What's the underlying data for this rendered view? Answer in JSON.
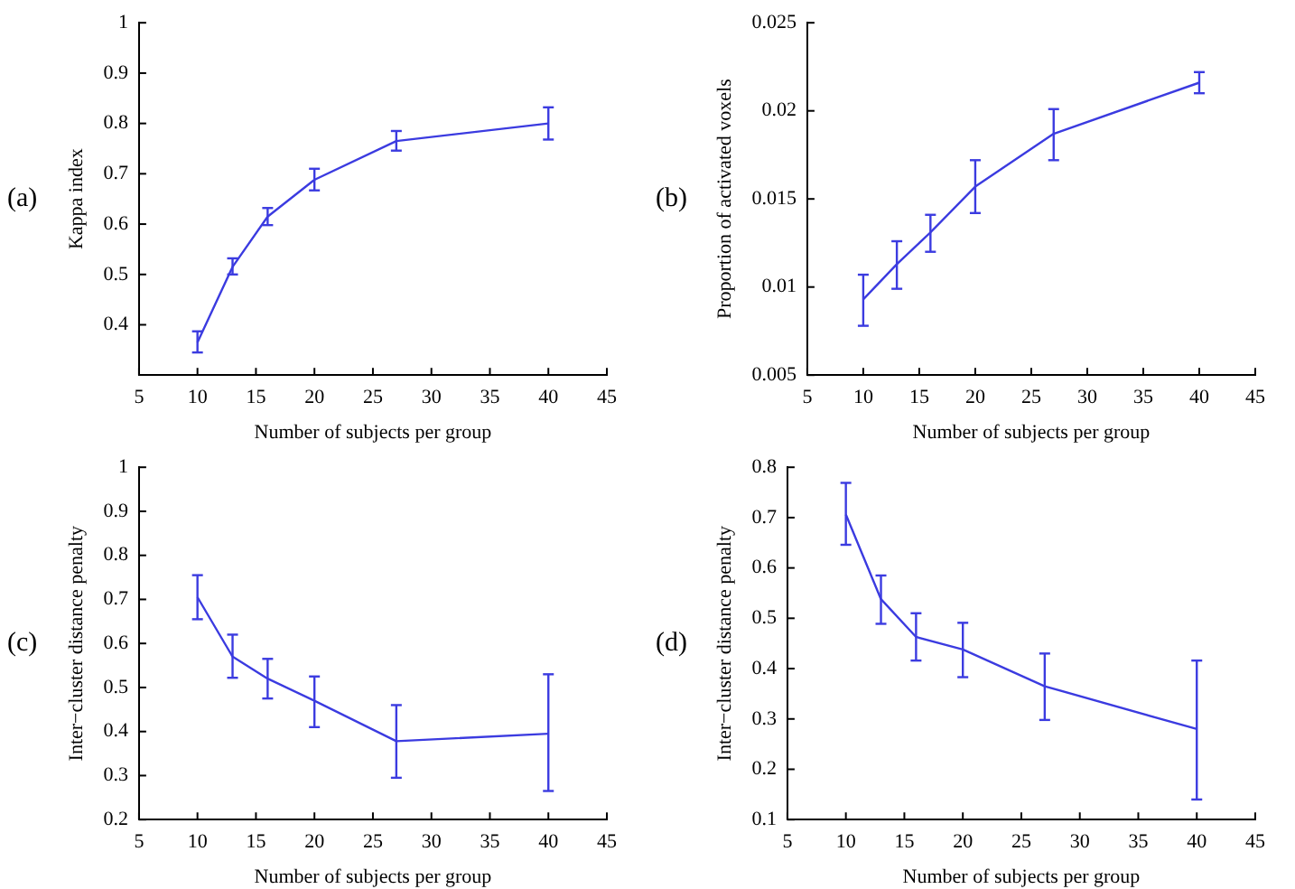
{
  "chart_data": [
    {
      "type": "line",
      "annotations": [
        "(a)"
      ],
      "xlabel": "Number of subjects per group",
      "ylabel": "Kappa index",
      "x": [
        10,
        13,
        16,
        20,
        27,
        40
      ],
      "xlim": [
        5,
        45
      ],
      "xticks": [
        5,
        10,
        15,
        20,
        25,
        30,
        35,
        40,
        45
      ],
      "ylim": [
        0.3,
        1
      ],
      "yticks": [
        0.4,
        0.5,
        0.6,
        0.7,
        0.8,
        0.9,
        1
      ],
      "grid": false,
      "legend": false,
      "marker": "none",
      "line_style": "solid",
      "series": [
        {
          "color": "#3b3be0",
          "values": [
            0.365,
            0.515,
            0.615,
            0.688,
            0.765,
            0.8
          ],
          "errors": [
            [
              0.345,
              0.387
            ],
            [
              0.5,
              0.532
            ],
            [
              0.598,
              0.632
            ],
            [
              0.667,
              0.71
            ],
            [
              0.746,
              0.785
            ],
            [
              0.768,
              0.832
            ]
          ]
        }
      ]
    },
    {
      "type": "line",
      "annotations": [
        "(b)"
      ],
      "xlabel": "Number of subjects per group",
      "ylabel": "Proportion of activated voxels",
      "x": [
        10,
        13,
        16,
        20,
        27,
        40
      ],
      "xlim": [
        5,
        45
      ],
      "xticks": [
        5,
        10,
        15,
        20,
        25,
        30,
        35,
        40,
        45
      ],
      "ylim": [
        0.005,
        0.025
      ],
      "yticks": [
        0.005,
        0.01,
        0.015,
        0.02,
        0.025
      ],
      "grid": false,
      "legend": false,
      "marker": "none",
      "line_style": "solid",
      "series": [
        {
          "color": "#3b3be0",
          "values": [
            0.0093,
            0.0113,
            0.0131,
            0.0157,
            0.0187,
            0.0216
          ],
          "errors": [
            [
              0.0078,
              0.0107
            ],
            [
              0.0099,
              0.0126
            ],
            [
              0.012,
              0.0141
            ],
            [
              0.0142,
              0.0172
            ],
            [
              0.0172,
              0.0201
            ],
            [
              0.021,
              0.0222
            ]
          ]
        }
      ]
    },
    {
      "type": "line",
      "annotations": [
        "(c)"
      ],
      "xlabel": "Number of subjects per group",
      "ylabel": "Inter−cluster distance penalty",
      "x": [
        10,
        13,
        16,
        20,
        27,
        40
      ],
      "xlim": [
        5,
        45
      ],
      "xticks": [
        5,
        10,
        15,
        20,
        25,
        30,
        35,
        40,
        45
      ],
      "ylim": [
        0.2,
        1
      ],
      "yticks": [
        0.2,
        0.3,
        0.4,
        0.5,
        0.6,
        0.7,
        0.8,
        0.9,
        1
      ],
      "grid": false,
      "legend": false,
      "marker": "none",
      "line_style": "solid",
      "series": [
        {
          "color": "#3b3be0",
          "values": [
            0.705,
            0.57,
            0.52,
            0.47,
            0.378,
            0.395
          ],
          "errors": [
            [
              0.655,
              0.755
            ],
            [
              0.522,
              0.62
            ],
            [
              0.475,
              0.565
            ],
            [
              0.41,
              0.525
            ],
            [
              0.295,
              0.46
            ],
            [
              0.265,
              0.53
            ]
          ]
        }
      ]
    },
    {
      "type": "line",
      "annotations": [
        "(d)"
      ],
      "xlabel": "Number of subjects per group",
      "ylabel": "Inter−cluster distance penalty",
      "x": [
        10,
        13,
        16,
        20,
        27,
        40
      ],
      "xlim": [
        5,
        45
      ],
      "xticks": [
        5,
        10,
        15,
        20,
        25,
        30,
        35,
        40,
        45
      ],
      "ylim": [
        0.1,
        0.8
      ],
      "yticks": [
        0.1,
        0.2,
        0.3,
        0.4,
        0.5,
        0.6,
        0.7,
        0.8
      ],
      "grid": false,
      "legend": false,
      "marker": "none",
      "line_style": "solid",
      "series": [
        {
          "color": "#3b3be0",
          "values": [
            0.706,
            0.538,
            0.463,
            0.438,
            0.365,
            0.28
          ],
          "errors": [
            [
              0.646,
              0.769
            ],
            [
              0.489,
              0.585
            ],
            [
              0.416,
              0.51
            ],
            [
              0.383,
              0.491
            ],
            [
              0.298,
              0.43
            ],
            [
              0.14,
              0.416
            ]
          ]
        }
      ]
    }
  ]
}
